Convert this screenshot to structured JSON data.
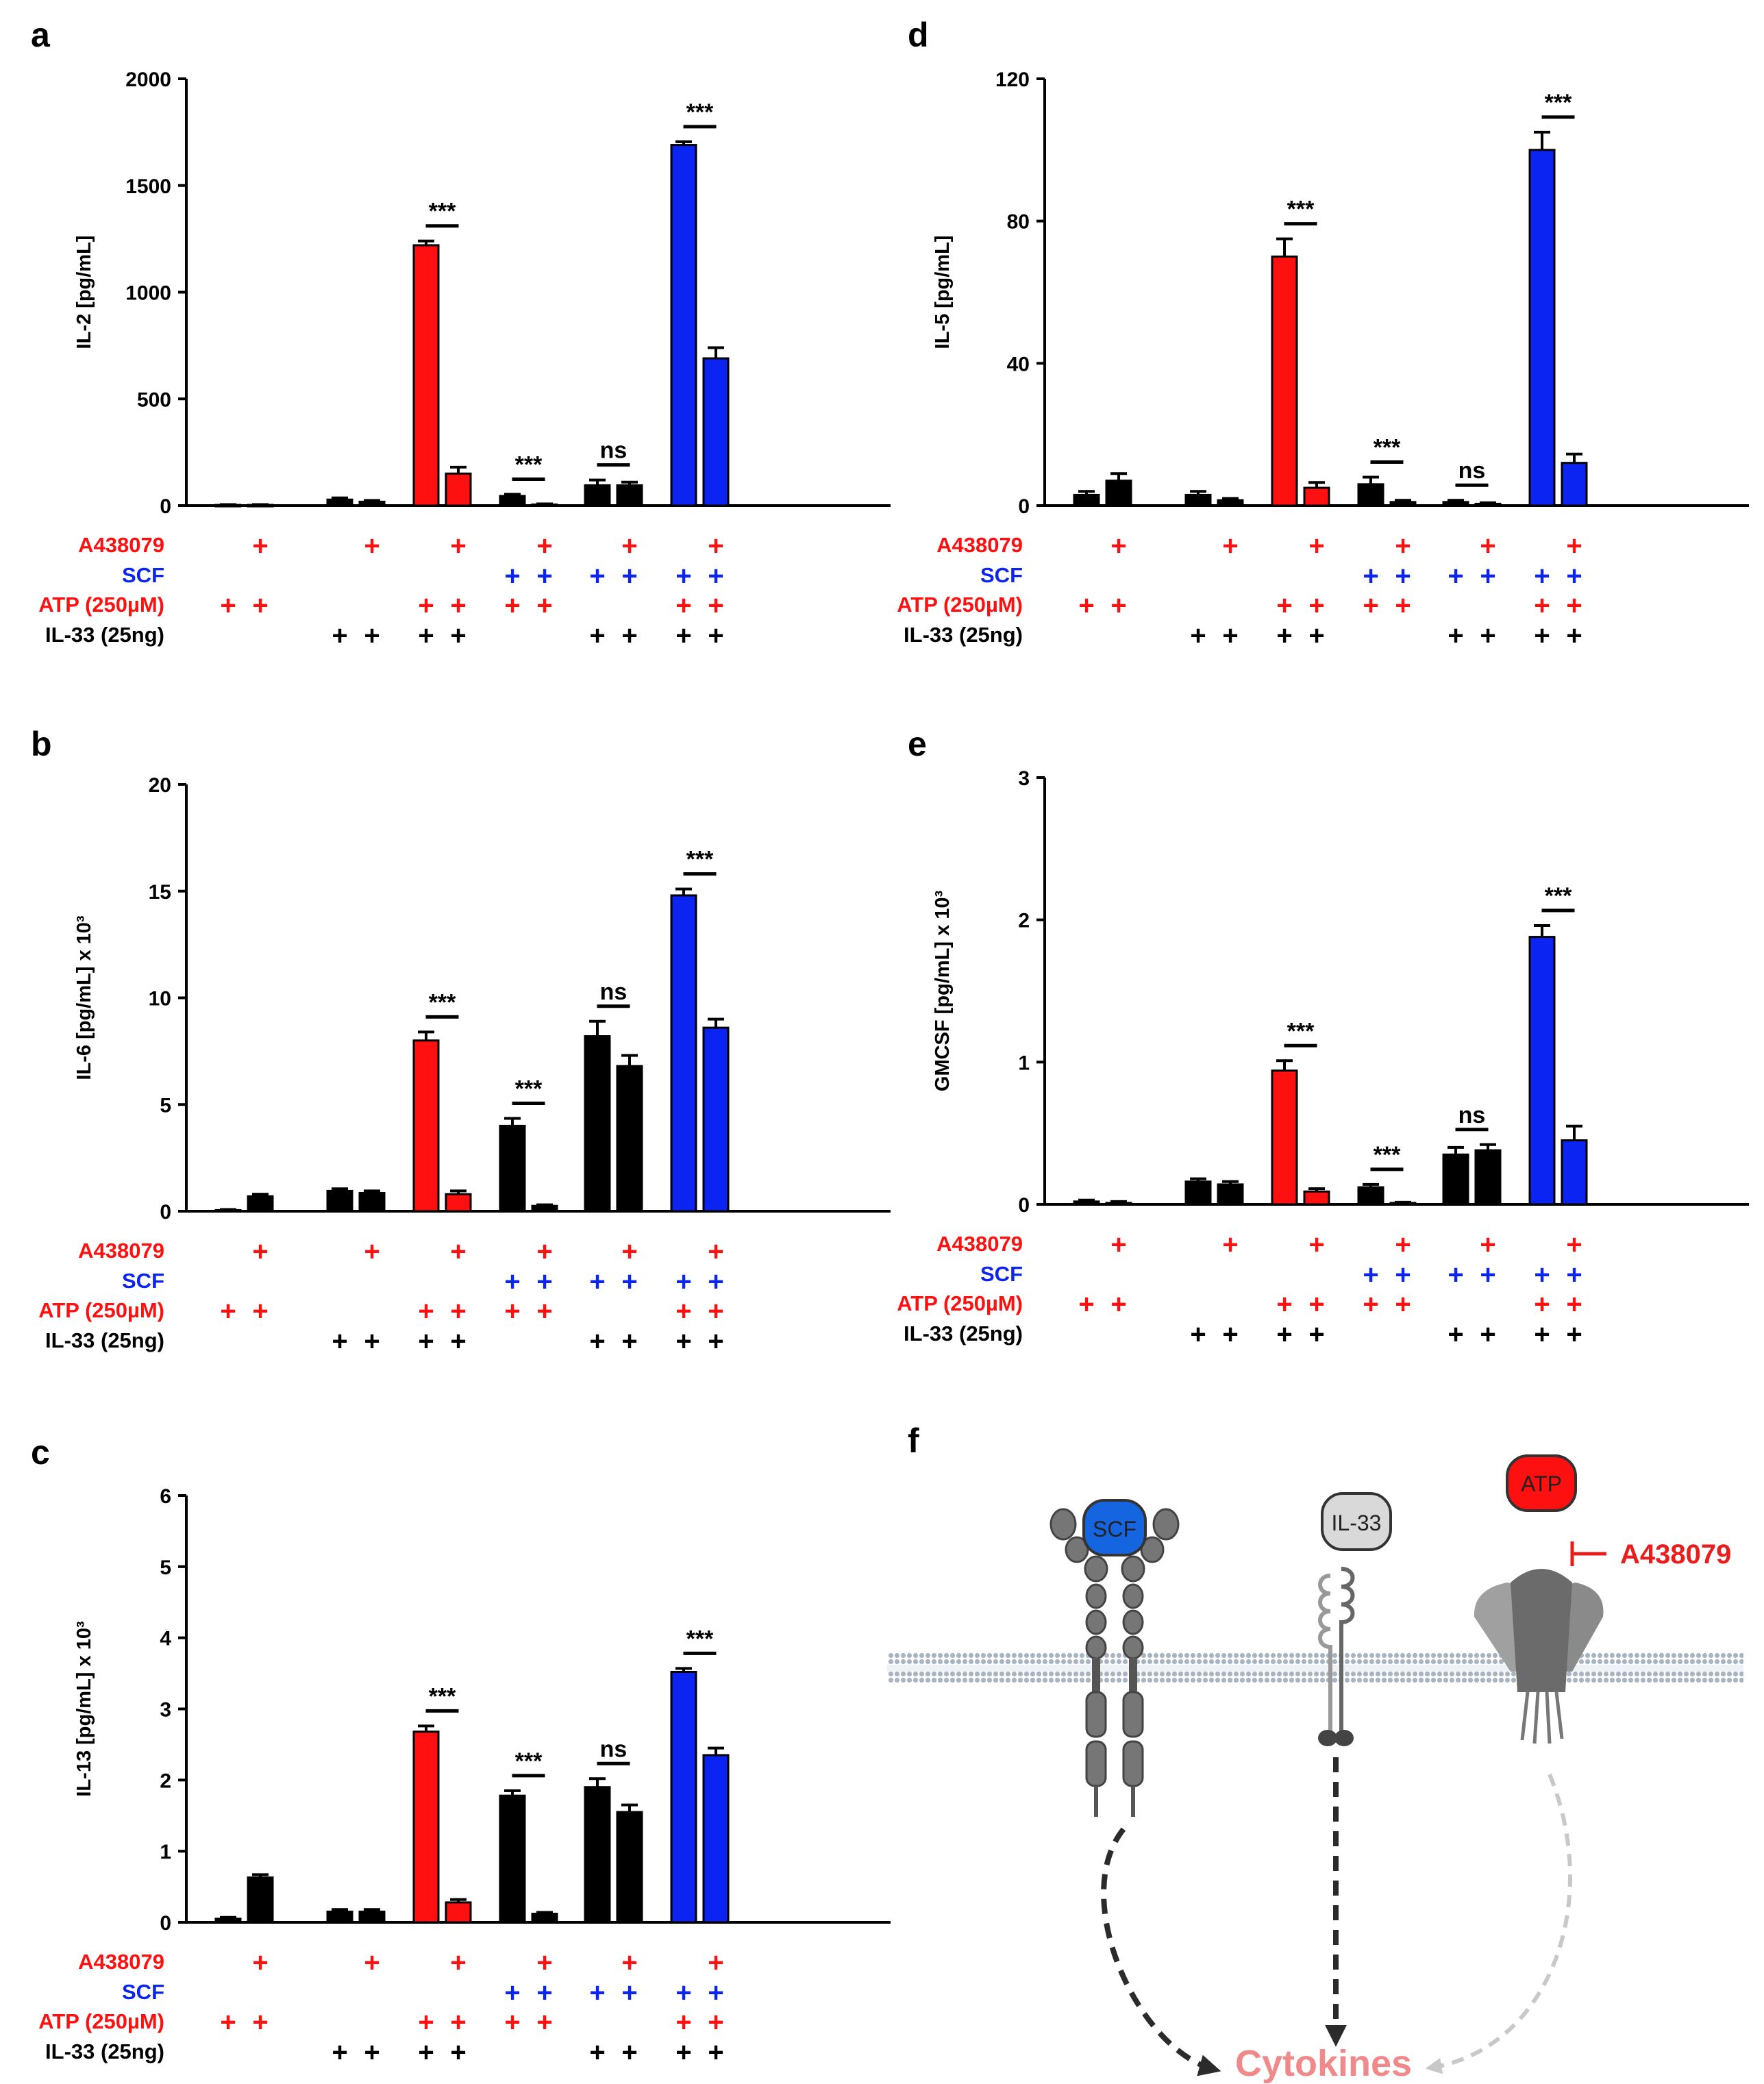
{
  "colors": {
    "red": "#ff1010",
    "blue": "#0b24f2",
    "black": "#000000",
    "cytokines": "#f08a8a",
    "inhibitor": "#e81e1e"
  },
  "treatments": {
    "labels": [
      {
        "key": "a438079",
        "text": "A438079",
        "color": "red"
      },
      {
        "key": "scf",
        "text": "SCF",
        "color": "blue"
      },
      {
        "key": "atp",
        "text": "ATP (250µM)",
        "color": "red"
      },
      {
        "key": "il33",
        "text": "IL-33 (25ng)",
        "color": "black"
      }
    ],
    "matrix": {
      "a438079": [
        0,
        1,
        0,
        1,
        0,
        1,
        0,
        1,
        0,
        1,
        0,
        1
      ],
      "scf": [
        0,
        0,
        0,
        0,
        0,
        0,
        1,
        1,
        1,
        1,
        1,
        1
      ],
      "atp": [
        1,
        1,
        0,
        0,
        1,
        1,
        1,
        1,
        0,
        0,
        1,
        1
      ],
      "il33": [
        0,
        0,
        1,
        1,
        1,
        1,
        0,
        0,
        1,
        1,
        1,
        1
      ]
    }
  },
  "chart_data": [
    {
      "panel": "a",
      "type": "bar",
      "ylabel": "IL-2 [pg/mL]",
      "ylim": [
        0,
        2000
      ],
      "yticks": [
        "0",
        "500",
        "1000",
        "1500",
        "2000"
      ],
      "values": [
        3,
        3,
        28,
        18,
        1220,
        150,
        45,
        5,
        95,
        95,
        1690,
        690
      ],
      "errors": [
        2,
        2,
        8,
        6,
        20,
        30,
        8,
        3,
        25,
        15,
        15,
        50
      ],
      "colors": [
        "black",
        "black",
        "black",
        "black",
        "red",
        "red",
        "black",
        "black",
        "black",
        "black",
        "blue",
        "blue"
      ],
      "significance": [
        null,
        null,
        "***",
        "***",
        "ns",
        "***"
      ]
    },
    {
      "panel": "b",
      "type": "bar",
      "ylabel": "IL-6 [pg/mL] x 10³",
      "ylim": [
        0,
        20
      ],
      "yticks": [
        "0",
        "5",
        "10",
        "15",
        "20"
      ],
      "values": [
        0.05,
        0.7,
        0.95,
        0.85,
        8.0,
        0.8,
        4.0,
        0.25,
        8.2,
        6.8,
        14.8,
        8.6
      ],
      "errors": [
        0.03,
        0.1,
        0.1,
        0.1,
        0.4,
        0.15,
        0.35,
        0.05,
        0.7,
        0.5,
        0.3,
        0.4
      ],
      "colors": [
        "black",
        "black",
        "black",
        "black",
        "red",
        "red",
        "black",
        "black",
        "black",
        "black",
        "blue",
        "blue"
      ],
      "significance": [
        null,
        null,
        "***",
        "***",
        "ns",
        "***"
      ]
    },
    {
      "panel": "c",
      "type": "bar",
      "ylabel": "IL-13 [pg/mL] x 10³",
      "ylim": [
        0,
        6
      ],
      "yticks": [
        "0",
        "1",
        "2",
        "3",
        "4",
        "5",
        "6"
      ],
      "values": [
        0.05,
        0.63,
        0.15,
        0.15,
        2.68,
        0.28,
        1.78,
        0.12,
        1.9,
        1.55,
        3.52,
        2.35
      ],
      "errors": [
        0.02,
        0.04,
        0.03,
        0.03,
        0.08,
        0.04,
        0.07,
        0.02,
        0.12,
        0.1,
        0.05,
        0.1
      ],
      "colors": [
        "black",
        "black",
        "black",
        "black",
        "red",
        "red",
        "black",
        "black",
        "black",
        "black",
        "blue",
        "blue"
      ],
      "significance": [
        null,
        null,
        "***",
        "***",
        "ns",
        "***"
      ]
    },
    {
      "panel": "d",
      "type": "bar",
      "ylabel": "IL-5 [pg/mL]",
      "ylim": [
        0,
        120
      ],
      "yticks": [
        "0",
        "40",
        "80",
        "120"
      ],
      "values": [
        3,
        7,
        3,
        1.5,
        70,
        5,
        6,
        1,
        1,
        0.5,
        100,
        12
      ],
      "errors": [
        1,
        2,
        1,
        0.5,
        5,
        1.5,
        2,
        0.5,
        0.5,
        0.3,
        5,
        2.5
      ],
      "colors": [
        "black",
        "black",
        "black",
        "black",
        "red",
        "red",
        "black",
        "black",
        "black",
        "black",
        "blue",
        "blue"
      ],
      "significance": [
        null,
        null,
        "***",
        "***",
        "ns",
        "***"
      ]
    },
    {
      "panel": "e",
      "type": "bar",
      "ylabel": "GMCSF [pg/mL] x 10³",
      "ylim": [
        0,
        3
      ],
      "yticks": [
        "0",
        "1",
        "2",
        "3"
      ],
      "values": [
        0.02,
        0.01,
        0.16,
        0.14,
        0.94,
        0.09,
        0.12,
        0.01,
        0.35,
        0.38,
        1.88,
        0.45
      ],
      "errors": [
        0.01,
        0.01,
        0.02,
        0.02,
        0.07,
        0.02,
        0.02,
        0.005,
        0.05,
        0.04,
        0.08,
        0.1
      ],
      "colors": [
        "black",
        "black",
        "black",
        "black",
        "red",
        "red",
        "black",
        "black",
        "black",
        "black",
        "blue",
        "blue"
      ],
      "significance": [
        null,
        null,
        "***",
        "***",
        "ns",
        "***"
      ]
    }
  ],
  "panel_f": {
    "letter": "f",
    "labels": {
      "scf": "SCF",
      "il33": "IL-33",
      "atp": "ATP",
      "inhibitor": "A438079",
      "output": "Cytokines"
    }
  }
}
